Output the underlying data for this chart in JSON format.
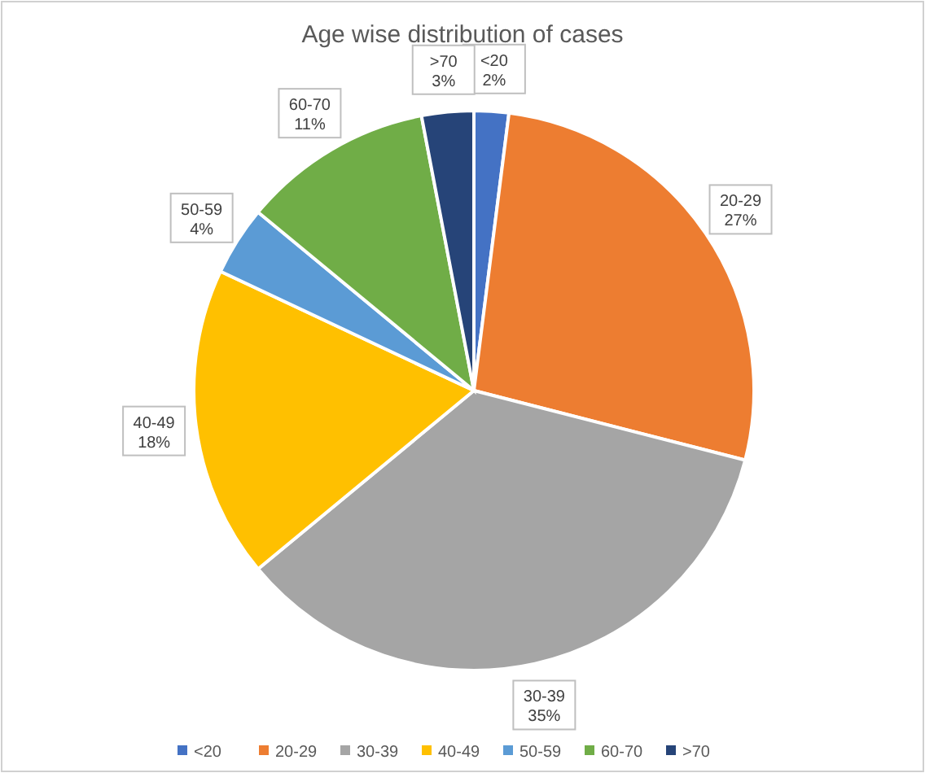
{
  "chart_data": {
    "type": "pie",
    "title": "Age wise distribution of cases",
    "categories": [
      "<20",
      "20-29",
      "30-39",
      "40-49",
      "50-59",
      "60-70",
      ">70"
    ],
    "values": [
      2,
      27,
      35,
      18,
      4,
      11,
      3
    ],
    "colors": [
      "#4472c4",
      "#ed7d31",
      "#a5a5a5",
      "#ffc000",
      "#5b9bd5",
      "#70ad47",
      "#264478"
    ],
    "value_labels": [
      "2%",
      "27%",
      "35%",
      "18%",
      "4%",
      "11%",
      "3%"
    ],
    "legend": "bottom"
  }
}
